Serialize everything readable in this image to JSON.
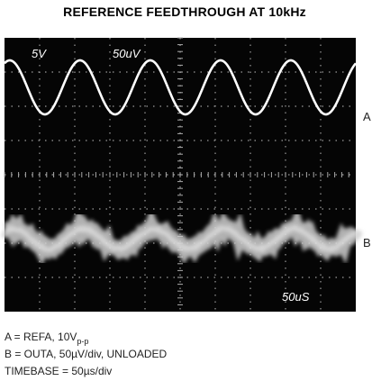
{
  "title": "REFERENCE FEEDTHROUGH AT 10kHz",
  "screen": {
    "labels": [
      "5V",
      "50uV",
      "50uS"
    ]
  },
  "channels": [
    "A",
    "B"
  ],
  "caption": [
    {
      "text": "A = REFA, 10V",
      "sub": "p-p"
    },
    {
      "text": "B = OUTA, 50µV/div, UNLOADED"
    },
    {
      "text": "TIMEBASE = 50µs/div"
    }
  ]
}
